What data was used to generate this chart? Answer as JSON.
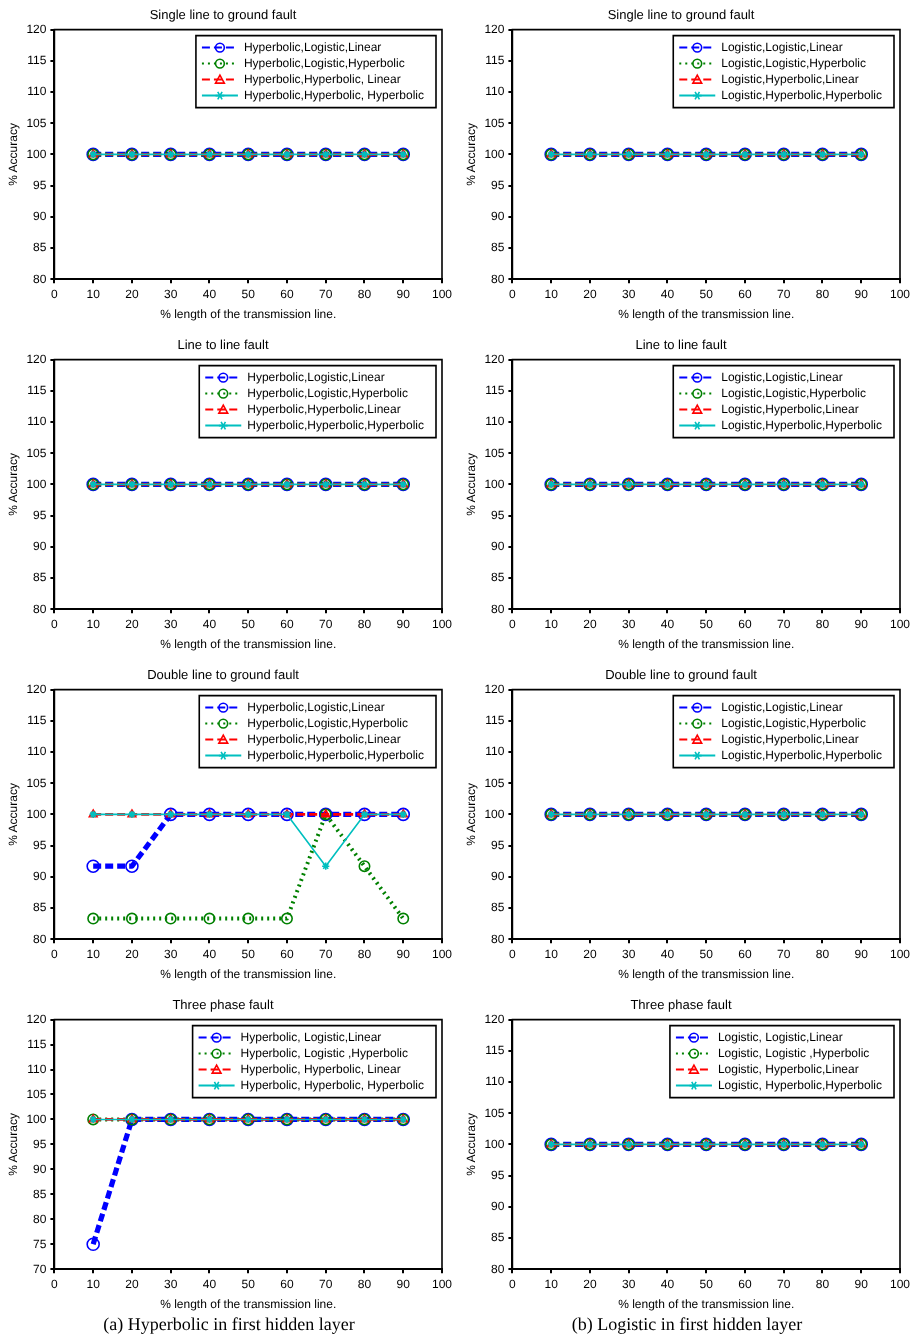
{
  "chart_data": [
    {
      "type": "line",
      "title": "Single line to ground fault",
      "xlabel": "% length of the transmission line.",
      "ylabel": "% Accuracy",
      "x": [
        10,
        20,
        30,
        40,
        50,
        60,
        70,
        80,
        90
      ],
      "xlim": [
        0,
        100
      ],
      "xticks": [
        0,
        10,
        20,
        30,
        40,
        50,
        60,
        70,
        80,
        90,
        100
      ],
      "ylim": [
        80,
        120
      ],
      "yticks": [
        80,
        85,
        90,
        95,
        100,
        105,
        110,
        115,
        120
      ],
      "legend": "top right",
      "series": [
        {
          "name": "Hyperbolic,Logistic,Linear",
          "color": "#0000ff",
          "marker": "circle",
          "line_style": "dashed",
          "values": [
            100,
            100,
            100,
            100,
            100,
            100,
            100,
            100,
            100
          ]
        },
        {
          "name": "Hyperbolic,Logistic,Hyperbolic",
          "color": "#008000",
          "marker": "circle",
          "line_style": "dotted",
          "values": [
            100,
            100,
            100,
            100,
            100,
            100,
            100,
            100,
            100
          ]
        },
        {
          "name": "Hyperbolic,Hyperbolic, Linear",
          "color": "#ff0000",
          "marker": "triangle",
          "line_style": "dashed",
          "values": [
            100,
            100,
            100,
            100,
            100,
            100,
            100,
            100,
            100
          ]
        },
        {
          "name": "Hyperbolic,Hyperbolic, Hyperbolic",
          "color": "#00bfbf",
          "marker": "cross",
          "line_style": "solid",
          "values": [
            100,
            100,
            100,
            100,
            100,
            100,
            100,
            100,
            100
          ]
        }
      ]
    },
    {
      "type": "line",
      "title": "Single line to ground fault",
      "xlabel": "% length of the transmission line.",
      "ylabel": "% Accuracy",
      "x": [
        10,
        20,
        30,
        40,
        50,
        60,
        70,
        80,
        90
      ],
      "xlim": [
        0,
        100
      ],
      "xticks": [
        0,
        10,
        20,
        30,
        40,
        50,
        60,
        70,
        80,
        90,
        100
      ],
      "ylim": [
        80,
        120
      ],
      "yticks": [
        80,
        85,
        90,
        95,
        100,
        105,
        110,
        115,
        120
      ],
      "legend": "top right",
      "series": [
        {
          "name": "Logistic,Logistic,Linear",
          "color": "#0000ff",
          "marker": "circle",
          "line_style": "dashed",
          "values": [
            100,
            100,
            100,
            100,
            100,
            100,
            100,
            100,
            100
          ]
        },
        {
          "name": "Logistic,Logistic,Hyperbolic",
          "color": "#008000",
          "marker": "circle",
          "line_style": "dotted",
          "values": [
            100,
            100,
            100,
            100,
            100,
            100,
            100,
            100,
            100
          ]
        },
        {
          "name": "Logistic,Hyperbolic,Linear",
          "color": "#ff0000",
          "marker": "triangle",
          "line_style": "dashed",
          "values": [
            100,
            100,
            100,
            100,
            100,
            100,
            100,
            100,
            100
          ]
        },
        {
          "name": "Logistic,Hyperbolic,Hyperbolic",
          "color": "#00bfbf",
          "marker": "cross",
          "line_style": "solid",
          "values": [
            100,
            100,
            100,
            100,
            100,
            100,
            100,
            100,
            100
          ]
        }
      ]
    },
    {
      "type": "line",
      "title": "Line to line fault",
      "xlabel": "% length of the transmission line.",
      "ylabel": "% Accuracy",
      "x": [
        10,
        20,
        30,
        40,
        50,
        60,
        70,
        80,
        90
      ],
      "xlim": [
        0,
        100
      ],
      "xticks": [
        0,
        10,
        20,
        30,
        40,
        50,
        60,
        70,
        80,
        90,
        100
      ],
      "ylim": [
        80,
        120
      ],
      "yticks": [
        80,
        85,
        90,
        95,
        100,
        105,
        110,
        115,
        120
      ],
      "legend": "top right",
      "series": [
        {
          "name": "Hyperbolic,Logistic,Linear",
          "color": "#0000ff",
          "marker": "circle",
          "line_style": "dashed",
          "values": [
            100,
            100,
            100,
            100,
            100,
            100,
            100,
            100,
            100
          ]
        },
        {
          "name": "Hyperbolic,Logistic,Hyperbolic",
          "color": "#008000",
          "marker": "circle",
          "line_style": "dotted",
          "values": [
            100,
            100,
            100,
            100,
            100,
            100,
            100,
            100,
            100
          ]
        },
        {
          "name": "Hyperbolic,Hyperbolic,Linear",
          "color": "#ff0000",
          "marker": "triangle",
          "line_style": "dashed",
          "values": [
            100,
            100,
            100,
            100,
            100,
            100,
            100,
            100,
            100
          ]
        },
        {
          "name": "Hyperbolic,Hyperbolic,Hyperbolic",
          "color": "#00bfbf",
          "marker": "cross",
          "line_style": "solid",
          "values": [
            100,
            100,
            100,
            100,
            100,
            100,
            100,
            100,
            100
          ]
        }
      ]
    },
    {
      "type": "line",
      "title": "Line to line fault",
      "xlabel": "% length of the transmission line.",
      "ylabel": "% Accuracy",
      "x": [
        10,
        20,
        30,
        40,
        50,
        60,
        70,
        80,
        90
      ],
      "xlim": [
        0,
        100
      ],
      "xticks": [
        0,
        10,
        20,
        30,
        40,
        50,
        60,
        70,
        80,
        90,
        100
      ],
      "ylim": [
        80,
        120
      ],
      "yticks": [
        80,
        85,
        90,
        95,
        100,
        105,
        110,
        115,
        120
      ],
      "legend": "top right",
      "series": [
        {
          "name": "Logistic,Logistic,Linear",
          "color": "#0000ff",
          "marker": "circle",
          "line_style": "dashed",
          "values": [
            100,
            100,
            100,
            100,
            100,
            100,
            100,
            100,
            100
          ]
        },
        {
          "name": "Logistic,Logistic,Hyperbolic",
          "color": "#008000",
          "marker": "circle",
          "line_style": "dotted",
          "values": [
            100,
            100,
            100,
            100,
            100,
            100,
            100,
            100,
            100
          ]
        },
        {
          "name": "Logistic,Hyperbolic,Linear",
          "color": "#ff0000",
          "marker": "triangle",
          "line_style": "dashed",
          "values": [
            100,
            100,
            100,
            100,
            100,
            100,
            100,
            100,
            100
          ]
        },
        {
          "name": "Logistic,Hyperbolic,Hyperbolic",
          "color": "#00bfbf",
          "marker": "cross",
          "line_style": "solid",
          "values": [
            100,
            100,
            100,
            100,
            100,
            100,
            100,
            100,
            100
          ]
        }
      ]
    },
    {
      "type": "line",
      "title": "Double line to ground fault",
      "xlabel": "% length of the transmission line.",
      "ylabel": "% Accuracy",
      "x": [
        10,
        20,
        30,
        40,
        50,
        60,
        70,
        80,
        90
      ],
      "xlim": [
        0,
        100
      ],
      "xticks": [
        0,
        10,
        20,
        30,
        40,
        50,
        60,
        70,
        80,
        90,
        100
      ],
      "ylim": [
        80,
        120
      ],
      "yticks": [
        80,
        85,
        90,
        95,
        100,
        105,
        110,
        115,
        120
      ],
      "legend": "top right",
      "series": [
        {
          "name": "Hyperbolic,Logistic,Linear",
          "color": "#0000ff",
          "marker": "circle",
          "line_style": "dashed",
          "values": [
            91.7,
            91.7,
            100,
            100,
            100,
            100,
            100,
            100,
            100
          ]
        },
        {
          "name": "Hyperbolic,Logistic,Hyperbolic",
          "color": "#008000",
          "marker": "circle",
          "line_style": "dotted",
          "values": [
            83.3,
            83.3,
            83.3,
            83.3,
            83.3,
            83.3,
            100,
            91.7,
            83.3
          ]
        },
        {
          "name": "Hyperbolic,Hyperbolic,Linear",
          "color": "#ff0000",
          "marker": "triangle",
          "line_style": "dashed",
          "values": [
            100,
            100,
            100,
            100,
            100,
            100,
            100,
            100,
            100
          ]
        },
        {
          "name": "Hyperbolic,Hyperbolic,Hyperbolic",
          "color": "#00bfbf",
          "marker": "cross",
          "line_style": "solid",
          "values": [
            100,
            100,
            100,
            100,
            100,
            100,
            91.7,
            100,
            100
          ]
        }
      ]
    },
    {
      "type": "line",
      "title": "Double line to ground fault",
      "xlabel": "% length of the transmission line.",
      "ylabel": "% Accuracy",
      "x": [
        10,
        20,
        30,
        40,
        50,
        60,
        70,
        80,
        90
      ],
      "xlim": [
        0,
        100
      ],
      "xticks": [
        0,
        10,
        20,
        30,
        40,
        50,
        60,
        70,
        80,
        90,
        100
      ],
      "ylim": [
        80,
        120
      ],
      "yticks": [
        80,
        85,
        90,
        95,
        100,
        105,
        110,
        115,
        120
      ],
      "legend": "top right",
      "series": [
        {
          "name": "Logistic,Logistic,Linear",
          "color": "#0000ff",
          "marker": "circle",
          "line_style": "dashed",
          "values": [
            100,
            100,
            100,
            100,
            100,
            100,
            100,
            100,
            100
          ]
        },
        {
          "name": "Logistic,Logistic,Hyperbolic",
          "color": "#008000",
          "marker": "circle",
          "line_style": "dotted",
          "values": [
            100,
            100,
            100,
            100,
            100,
            100,
            100,
            100,
            100
          ]
        },
        {
          "name": "Logistic,Hyperbolic,Linear",
          "color": "#ff0000",
          "marker": "triangle",
          "line_style": "dashed",
          "values": [
            100,
            100,
            100,
            100,
            100,
            100,
            100,
            100,
            100
          ]
        },
        {
          "name": "Logistic,Hyperbolic,Hyperbolic",
          "color": "#00bfbf",
          "marker": "cross",
          "line_style": "solid",
          "values": [
            100,
            100,
            100,
            100,
            100,
            100,
            100,
            100,
            100
          ]
        }
      ]
    },
    {
      "type": "line",
      "title": "Three phase fault",
      "xlabel": "% length of the transmission line.",
      "ylabel": "% Accuracy",
      "x": [
        10,
        20,
        30,
        40,
        50,
        60,
        70,
        80,
        90
      ],
      "xlim": [
        0,
        100
      ],
      "xticks": [
        0,
        10,
        20,
        30,
        40,
        50,
        60,
        70,
        80,
        90,
        100
      ],
      "ylim": [
        70,
        120
      ],
      "yticks": [
        70,
        75,
        80,
        85,
        90,
        95,
        100,
        105,
        110,
        115,
        120
      ],
      "legend": "top right",
      "annotations": [
        "(a) Hyperbolic in first hidden layer"
      ],
      "series": [
        {
          "name": "Hyperbolic, Logistic,Linear",
          "color": "#0000ff",
          "marker": "circle",
          "line_style": "dashed",
          "values": [
            75,
            100,
            100,
            100,
            100,
            100,
            100,
            100,
            100
          ]
        },
        {
          "name": "Hyperbolic, Logistic ,Hyperbolic",
          "color": "#008000",
          "marker": "circle",
          "line_style": "dotted",
          "values": [
            100,
            100,
            100,
            100,
            100,
            100,
            100,
            100,
            100
          ]
        },
        {
          "name": "Hyperbolic, Hyperbolic, Linear",
          "color": "#ff0000",
          "marker": "triangle",
          "line_style": "dashed",
          "values": [
            100,
            100,
            100,
            100,
            100,
            100,
            100,
            100,
            100
          ]
        },
        {
          "name": "Hyperbolic, Hyperbolic, Hyperbolic",
          "color": "#00bfbf",
          "marker": "cross",
          "line_style": "solid",
          "values": [
            100,
            100,
            100,
            100,
            100,
            100,
            100,
            100,
            100
          ]
        }
      ]
    },
    {
      "type": "line",
      "title": "Three phase fault",
      "xlabel": "% length of the transmission line.",
      "ylabel": "% Accuracy",
      "x": [
        10,
        20,
        30,
        40,
        50,
        60,
        70,
        80,
        90
      ],
      "xlim": [
        0,
        100
      ],
      "xticks": [
        0,
        10,
        20,
        30,
        40,
        50,
        60,
        70,
        80,
        90,
        100
      ],
      "ylim": [
        80,
        120
      ],
      "yticks": [
        80,
        85,
        90,
        95,
        100,
        105,
        110,
        115,
        120
      ],
      "legend": "top right",
      "annotations": [
        "(b) Logistic in first hidden layer"
      ],
      "series": [
        {
          "name": "Logistic, Logistic,Linear",
          "color": "#0000ff",
          "marker": "circle",
          "line_style": "dashed",
          "values": [
            100,
            100,
            100,
            100,
            100,
            100,
            100,
            100,
            100
          ]
        },
        {
          "name": "Logistic, Logistic ,Hyperbolic",
          "color": "#008000",
          "marker": "circle",
          "line_style": "dotted",
          "values": [
            100,
            100,
            100,
            100,
            100,
            100,
            100,
            100,
            100
          ]
        },
        {
          "name": "Logistic, Hyperbolic,Linear",
          "color": "#ff0000",
          "marker": "triangle",
          "line_style": "dashed",
          "values": [
            100,
            100,
            100,
            100,
            100,
            100,
            100,
            100,
            100
          ]
        },
        {
          "name": "Logistic, Hyperbolic,Hyperbolic",
          "color": "#00bfbf",
          "marker": "cross",
          "line_style": "solid",
          "values": [
            100,
            100,
            100,
            100,
            100,
            100,
            100,
            100,
            100
          ]
        }
      ]
    }
  ]
}
